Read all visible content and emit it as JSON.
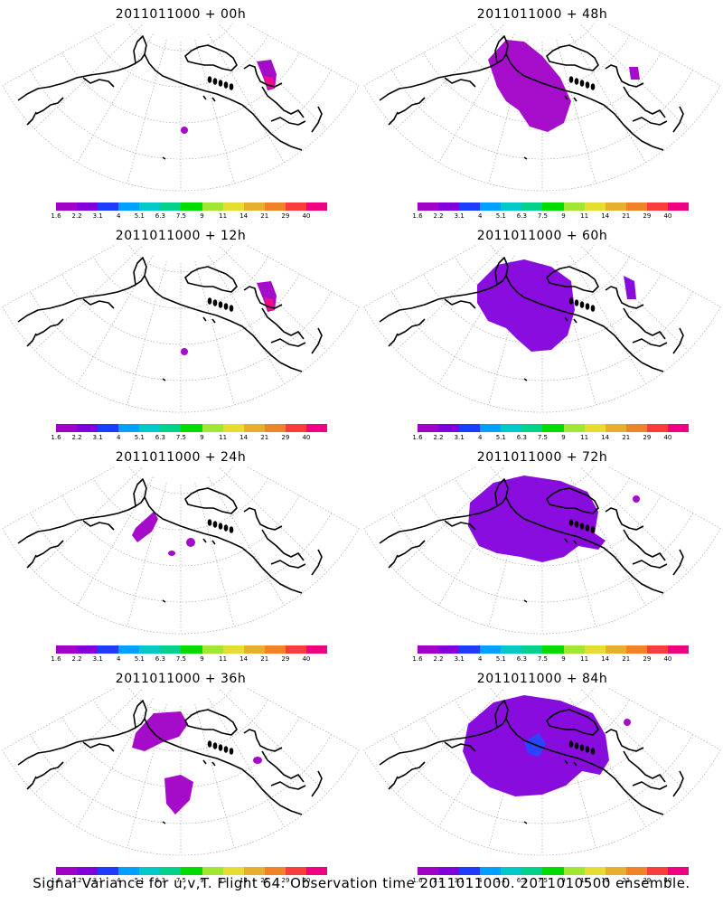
{
  "panels": [
    {
      "title": "2011011000 + 00h",
      "lead": "00h",
      "region_level": 0
    },
    {
      "title": "2011011000 + 48h",
      "lead": "48h",
      "region_level": 3
    },
    {
      "title": "2011011000 + 12h",
      "lead": "12h",
      "region_level": 0
    },
    {
      "title": "2011011000 + 60h",
      "lead": "60h",
      "region_level": 4
    },
    {
      "title": "2011011000 + 24h",
      "lead": "24h",
      "region_level": 1
    },
    {
      "title": "2011011000 + 72h",
      "lead": "72h",
      "region_level": 5
    },
    {
      "title": "2011011000 + 36h",
      "lead": "36h",
      "region_level": 2
    },
    {
      "title": "2011011000 + 84h",
      "lead": "84h",
      "region_level": 6
    }
  ],
  "colorbar": {
    "labels": [
      "1.6",
      "2.2",
      "3.1",
      "4",
      "5.1",
      "6.3",
      "7.5",
      "9",
      "11",
      "14",
      "21",
      "29",
      "40"
    ],
    "colors": [
      "#a000c8",
      "#8200dc",
      "#1e3cff",
      "#00a0ff",
      "#00c8c8",
      "#00d28c",
      "#00dc00",
      "#a0e632",
      "#e6dc32",
      "#e6af2d",
      "#f08228",
      "#fa3c3c",
      "#f00082"
    ]
  },
  "footer": {
    "text": "Signal Variance for u,v,T. Flight 64. Observation time 2011011000. 2011010500 ensemble."
  }
}
